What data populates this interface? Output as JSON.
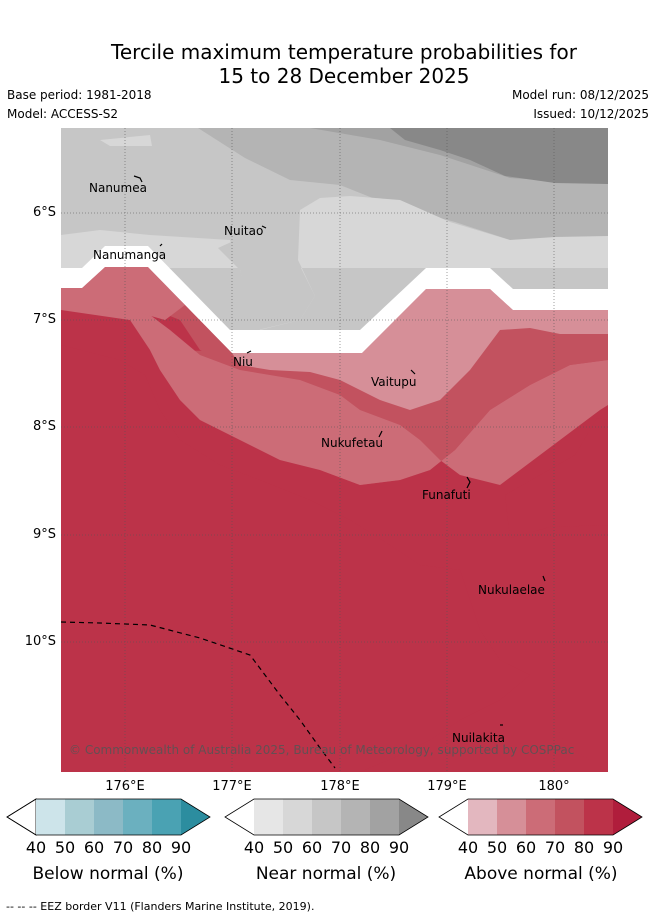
{
  "title_line1": "Tercile maximum temperature probabilities for",
  "title_line2": "15 to 28 December 2025",
  "base_period": "Base period: 1981-2018",
  "model": "Model: ACCESS-S2",
  "model_run": "Model run: 08/12/2025",
  "issued": "Issued: 10/12/2025",
  "lat_labels": [
    "6°S",
    "7°S",
    "8°S",
    "9°S",
    "10°S"
  ],
  "lon_labels": [
    "176°E",
    "177°E",
    "178°E",
    "179°E",
    "180°"
  ],
  "places": [
    {
      "name": "Nanumea"
    },
    {
      "name": "Nuitao"
    },
    {
      "name": "Nanumanga"
    },
    {
      "name": "Niu"
    },
    {
      "name": "Vaitupu"
    },
    {
      "name": "Nukufetau"
    },
    {
      "name": "Funafuti"
    },
    {
      "name": "Nukulaelae"
    },
    {
      "name": "Nuilakita"
    }
  ],
  "copyright": "© Commonwealth of Australia 2025, Bureau of Meteorology, supported by COSPPac",
  "colorbars": [
    {
      "title": "Below normal (%)",
      "ticks": [
        "40",
        "50",
        "60",
        "70",
        "80",
        "90"
      ],
      "colors": [
        "#ffffff",
        "#cde4ea",
        "#a9cdd3",
        "#8cbac6",
        "#6bb0bf",
        "#4aa2b3",
        "#2c8d9f"
      ]
    },
    {
      "title": "Near normal (%)",
      "ticks": [
        "40",
        "50",
        "60",
        "70",
        "80",
        "90"
      ],
      "colors": [
        "#ffffff",
        "#e6e6e6",
        "#d7d7d7",
        "#c6c6c6",
        "#b4b4b4",
        "#a2a2a2",
        "#888888"
      ]
    },
    {
      "title": "Above normal (%)",
      "ticks": [
        "40",
        "50",
        "60",
        "70",
        "80",
        "90"
      ],
      "colors": [
        "#ffffff",
        "#e3b7bf",
        "#d68f98",
        "#cc6c77",
        "#c2525f",
        "#bc3349",
        "#b01d3c"
      ]
    }
  ],
  "footer": "--  --  -- EEZ border V11 (Flanders Marine Institute, 2019)."
}
